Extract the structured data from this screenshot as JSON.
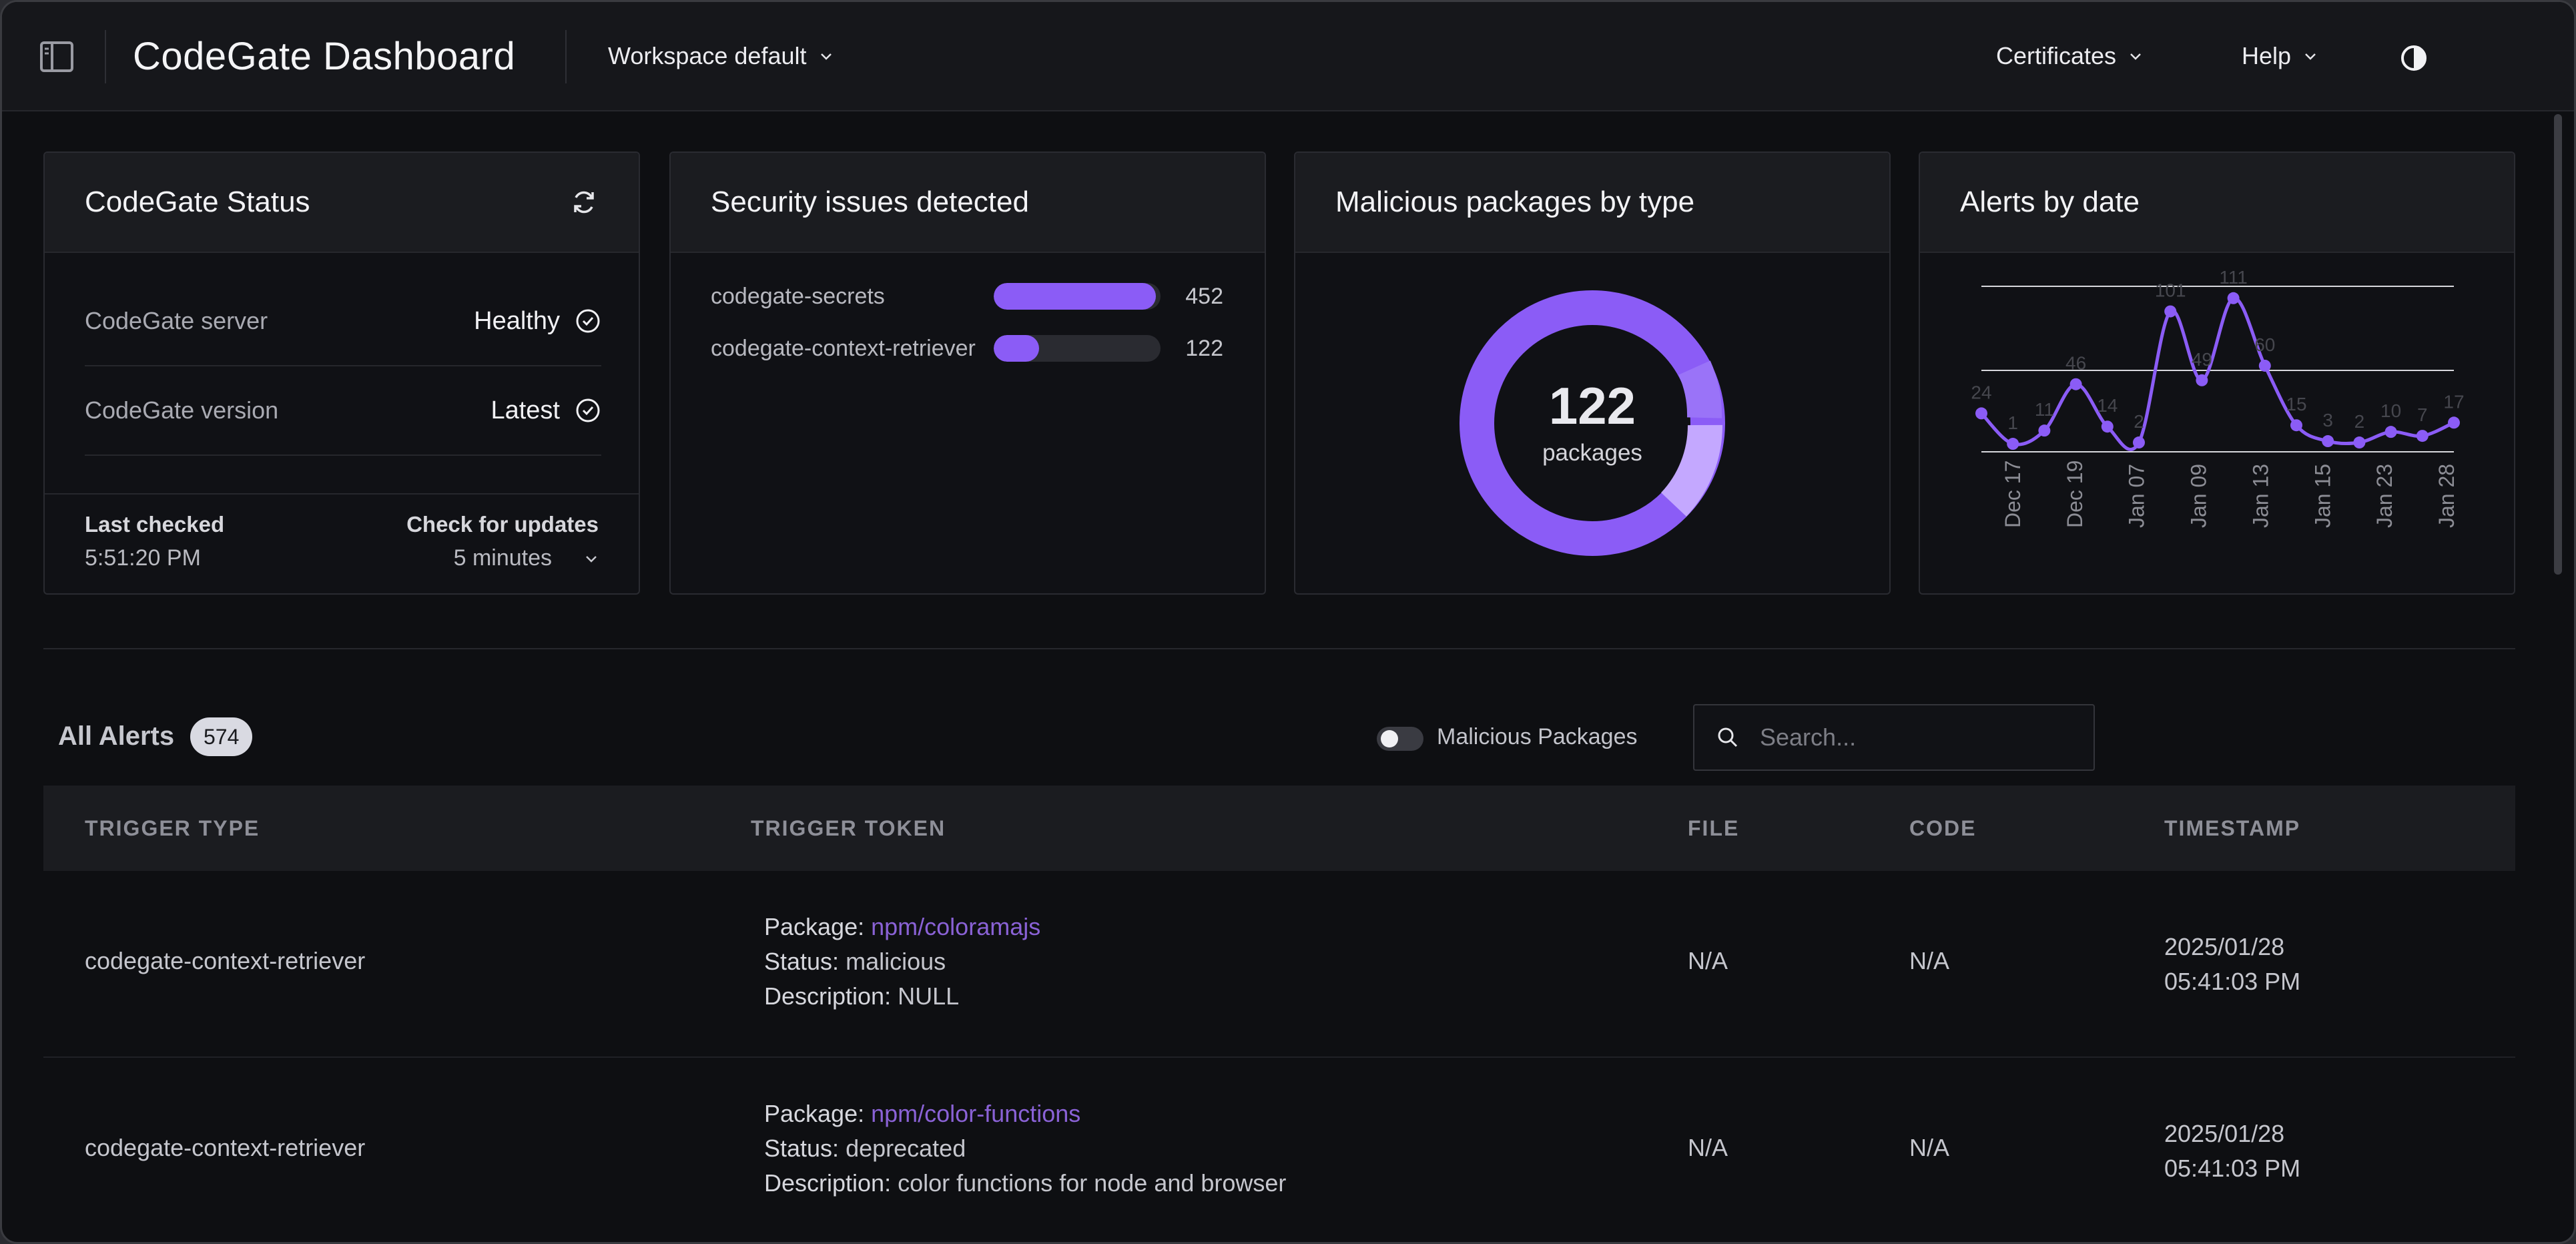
{
  "header": {
    "title": "CodeGate Dashboard",
    "workspace_label": "Workspace default",
    "certificates_label": "Certificates",
    "help_label": "Help"
  },
  "status_card": {
    "title": "CodeGate Status",
    "server_label": "CodeGate server",
    "server_value": "Healthy",
    "version_label": "CodeGate version",
    "version_value": "Latest",
    "last_checked_label": "Last checked",
    "last_checked_value": "5:51:20 PM",
    "check_updates_label": "Check for updates",
    "check_updates_value": "5 minutes"
  },
  "security_card": {
    "title": "Security issues detected",
    "items": [
      {
        "name": "codegate-secrets",
        "count": "452",
        "fraction": 0.97
      },
      {
        "name": "codegate-context-retriever",
        "count": "122",
        "fraction": 0.27
      }
    ]
  },
  "packages_card": {
    "title": "Malicious packages by type",
    "total": "122",
    "total_label": "packages"
  },
  "alerts_chart_card": {
    "title": "Alerts by date"
  },
  "chart_data": {
    "type": "line",
    "x_ticks": [
      "Dec 17",
      "Dec 19",
      "Jan 07",
      "Jan 09",
      "Jan 13",
      "Jan 15",
      "Jan 23",
      "Jan 28"
    ],
    "point_labels": [
      "24",
      "1",
      "11",
      "46",
      "14",
      "2",
      "101",
      "49",
      "111",
      "60",
      "15",
      "3",
      "2",
      "10",
      "7",
      "17"
    ],
    "values": [
      24,
      1,
      11,
      46,
      14,
      2,
      101,
      49,
      111,
      60,
      15,
      3,
      2,
      10,
      7,
      17
    ],
    "color": "#8b5cf6"
  },
  "alerts": {
    "title": "All Alerts",
    "count": "574",
    "toggle_label": "Malicious Packages",
    "search_placeholder": "Search...",
    "columns": [
      "TRIGGER TYPE",
      "TRIGGER TOKEN",
      "FILE",
      "CODE",
      "TIMESTAMP"
    ],
    "rows": [
      {
        "trigger_type": "codegate-context-retriever",
        "package_key": "Package:",
        "package_value": "npm/coloramajs",
        "status_key": "Status:",
        "status_value": "malicious",
        "description_key": "Description:",
        "description_value": "NULL",
        "file": "N/A",
        "code": "N/A",
        "date": "2025/01/28",
        "time": "05:41:03 PM"
      },
      {
        "trigger_type": "codegate-context-retriever",
        "package_key": "Package:",
        "package_value": "npm/color-functions",
        "status_key": "Status:",
        "status_value": "deprecated",
        "description_key": "Description:",
        "description_value": "color functions for node and browser",
        "file": "N/A",
        "code": "N/A",
        "date": "2025/01/28",
        "time": "05:41:03 PM"
      }
    ]
  },
  "colors": {
    "accent": "#8b5cf6",
    "accent_light": "#c4a8ff",
    "link": "#8a62d6",
    "background": "#0e0f12",
    "panel_header": "#1b1c20"
  }
}
